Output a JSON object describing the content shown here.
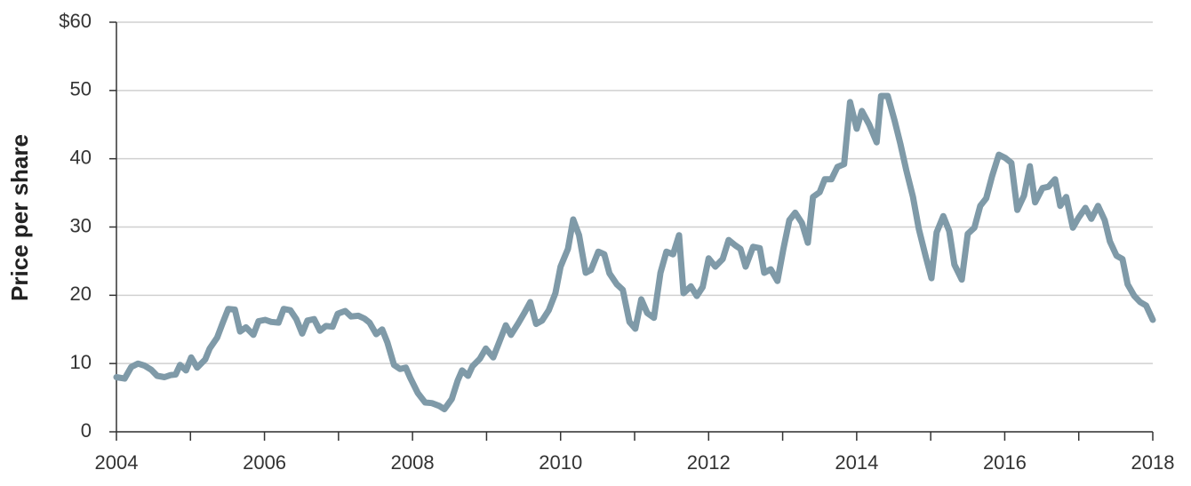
{
  "chart_data": {
    "type": "line",
    "y_label": "Price per share",
    "xlim": [
      2004,
      2018
    ],
    "xticks": [
      2004,
      2006,
      2008,
      2010,
      2012,
      2014,
      2016,
      2018
    ],
    "xminorticks": [
      2005,
      2007,
      2009,
      2011,
      2013,
      2015,
      2017
    ],
    "ylim": [
      0,
      60
    ],
    "yticks": [
      0,
      10,
      20,
      30,
      40,
      50,
      {
        "value": 60,
        "label": "$60"
      }
    ],
    "grid": true,
    "series": [
      {
        "color": "#7f9aa8",
        "x": [
          2004.0,
          2004.11,
          2004.2,
          2004.29,
          2004.38,
          2004.47,
          2004.55,
          2004.65,
          2004.73,
          2004.8,
          2004.86,
          2004.94,
          2005.01,
          2005.09,
          2005.2,
          2005.26,
          2005.36,
          2005.43,
          2005.51,
          2005.6,
          2005.67,
          2005.75,
          2005.85,
          2005.92,
          2006.01,
          2006.09,
          2006.19,
          2006.26,
          2006.35,
          2006.43,
          2006.51,
          2006.58,
          2006.67,
          2006.75,
          2006.83,
          2006.92,
          2006.99,
          2007.09,
          2007.17,
          2007.27,
          2007.35,
          2007.42,
          2007.51,
          2007.59,
          2007.66,
          2007.75,
          2007.83,
          2007.91,
          2007.97,
          2008.07,
          2008.17,
          2008.26,
          2008.36,
          2008.43,
          2008.53,
          2008.61,
          2008.67,
          2008.75,
          2008.81,
          2008.91,
          2008.99,
          2009.09,
          2009.17,
          2009.26,
          2009.33,
          2009.43,
          2009.51,
          2009.59,
          2009.67,
          2009.75,
          2009.84,
          2009.93,
          2010.0,
          2010.1,
          2010.17,
          2010.25,
          2010.34,
          2010.41,
          2010.51,
          2010.59,
          2010.66,
          2010.76,
          2010.84,
          2010.93,
          2011.01,
          2011.09,
          2011.17,
          2011.26,
          2011.35,
          2011.43,
          2011.52,
          2011.6,
          2011.66,
          2011.76,
          2011.84,
          2011.92,
          2012.0,
          2012.09,
          2012.19,
          2012.27,
          2012.36,
          2012.43,
          2012.5,
          2012.6,
          2012.69,
          2012.75,
          2012.84,
          2012.93,
          2013.01,
          2013.09,
          2013.17,
          2013.26,
          2013.34,
          2013.41,
          2013.5,
          2013.57,
          2013.66,
          2013.74,
          2013.83,
          2013.91,
          2014.0,
          2014.07,
          2014.17,
          2014.27,
          2014.33,
          2014.42,
          2014.51,
          2014.59,
          2014.67,
          2014.76,
          2014.84,
          2014.93,
          2015.01,
          2015.08,
          2015.17,
          2015.25,
          2015.32,
          2015.42,
          2015.5,
          2015.59,
          2015.67,
          2015.75,
          2015.83,
          2015.92,
          2016.01,
          2016.09,
          2016.17,
          2016.26,
          2016.34,
          2016.41,
          2016.51,
          2016.59,
          2016.68,
          2016.75,
          2016.83,
          2016.92,
          2017.0,
          2017.09,
          2017.17,
          2017.26,
          2017.35,
          2017.42,
          2017.51,
          2017.59,
          2017.66,
          2017.75,
          2017.83,
          2017.91,
          2018.0
        ],
        "values": [
          8,
          7.8,
          9.5,
          10,
          9.7,
          9.1,
          8.2,
          8,
          8.3,
          8.4,
          9.8,
          9,
          10.9,
          9.4,
          10.6,
          12.2,
          13.8,
          15.8,
          18,
          17.9,
          14.7,
          15.3,
          14.2,
          16.2,
          16.4,
          16.1,
          16,
          18,
          17.8,
          16.5,
          14.4,
          16.3,
          16.5,
          14.8,
          15.5,
          15.4,
          17.3,
          17.7,
          16.9,
          17,
          16.6,
          16,
          14.3,
          15,
          13.1,
          9.8,
          9.2,
          9.4,
          7.9,
          5.7,
          4.3,
          4.2,
          3.8,
          3.3,
          4.8,
          7.5,
          9,
          8.2,
          9.6,
          10.7,
          12.2,
          10.9,
          13.1,
          15.6,
          14.2,
          15.9,
          17.4,
          19,
          15.8,
          16.3,
          17.8,
          20.3,
          24.2,
          26.8,
          31.1,
          28.8,
          23.3,
          23.7,
          26.4,
          26,
          23.2,
          21.6,
          20.8,
          16.1,
          15.1,
          19.4,
          17.4,
          16.7,
          23.3,
          26.4,
          26,
          28.8,
          20.3,
          21.3,
          19.9,
          21.2,
          25.4,
          24.2,
          25.3,
          28.1,
          27.3,
          26.8,
          24.2,
          27.1,
          26.9,
          23.3,
          23.8,
          22.1,
          26.8,
          31,
          32.1,
          30.6,
          27.7,
          34.4,
          35.1,
          37,
          37,
          38.8,
          39.2,
          48.3,
          44.4,
          47,
          45,
          42.4,
          49.2,
          49.2,
          45.7,
          42.2,
          38.3,
          34.4,
          29.7,
          25.8,
          22.5,
          29.2,
          31.6,
          29.4,
          24.5,
          22.3,
          29,
          29.9,
          33.1,
          34.2,
          37.5,
          40.6,
          40.1,
          39.4,
          32.5,
          34.6,
          38.9,
          33.6,
          35.7,
          35.9,
          37,
          33.1,
          34.4,
          29.9,
          31.4,
          32.8,
          31.2,
          33.1,
          31,
          27.9,
          25.8,
          25.3,
          21.6,
          19.9,
          19,
          18.5,
          16.4
        ]
      }
    ]
  }
}
